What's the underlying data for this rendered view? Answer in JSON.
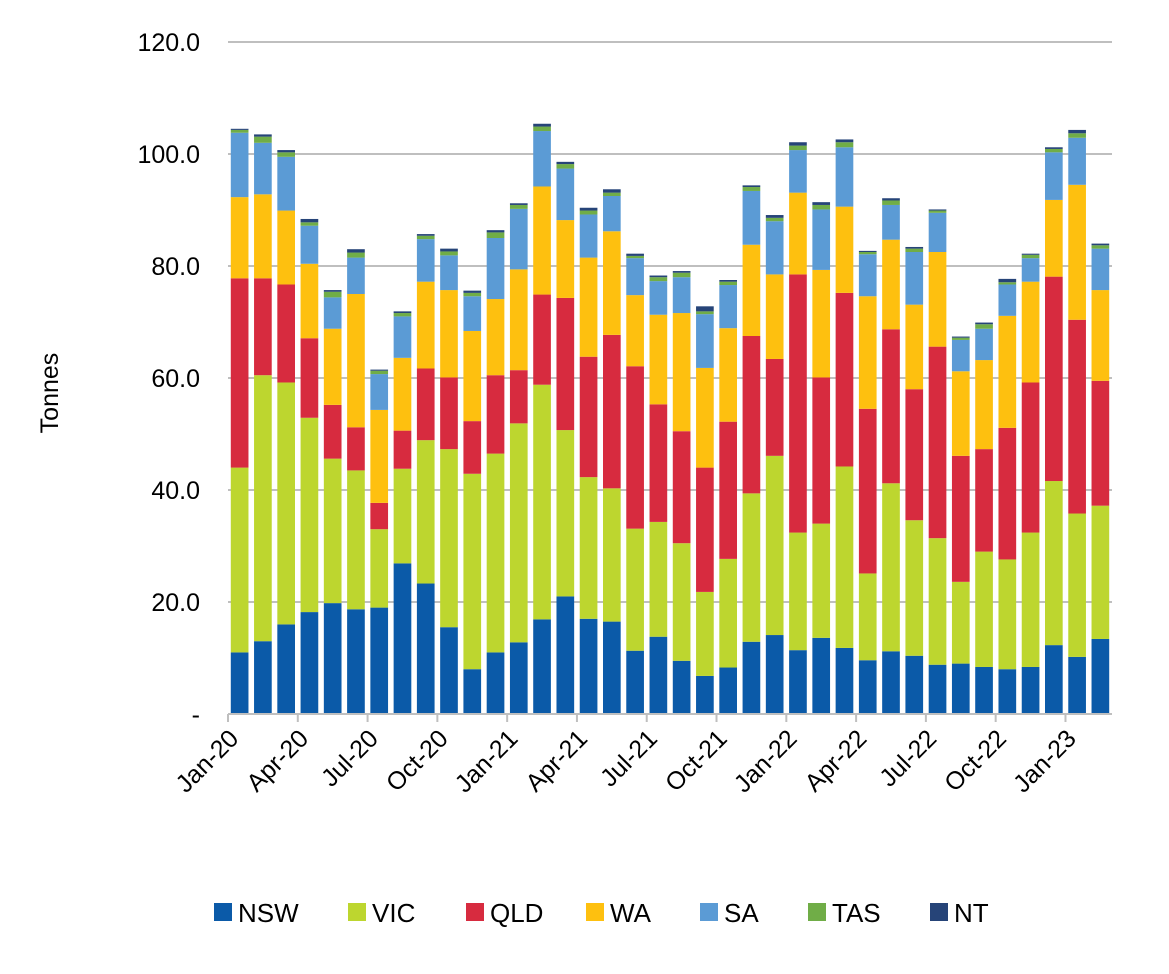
{
  "chart_data": {
    "type": "bar",
    "stacked": true,
    "title": "",
    "xlabel": "",
    "ylabel": "Tonnes",
    "ylim": [
      0,
      120
    ],
    "yticks": [
      "-",
      "20.0",
      "40.0",
      "60.0",
      "80.0",
      "100.0",
      "120.0"
    ],
    "ytick_values": [
      0,
      20,
      40,
      60,
      80,
      100,
      120
    ],
    "grid": true,
    "legend_position": "bottom",
    "categories": [
      "Jan-20",
      "Feb-20",
      "Mar-20",
      "Apr-20",
      "May-20",
      "Jun-20",
      "Jul-20",
      "Aug-20",
      "Sep-20",
      "Oct-20",
      "Nov-20",
      "Dec-20",
      "Jan-21",
      "Feb-21",
      "Mar-21",
      "Apr-21",
      "May-21",
      "Jun-21",
      "Jul-21",
      "Aug-21",
      "Sep-21",
      "Oct-21",
      "Nov-21",
      "Dec-21",
      "Jan-22",
      "Feb-22",
      "Mar-22",
      "Apr-22",
      "May-22",
      "Jun-22",
      "Jul-22",
      "Aug-22",
      "Sep-22",
      "Oct-22",
      "Nov-22",
      "Dec-22",
      "Jan-23",
      "Feb-23"
    ],
    "xtick_labels": [
      "Jan-20",
      "Apr-20",
      "Jul-20",
      "Oct-20",
      "Jan-21",
      "Apr-21",
      "Jul-21",
      "Oct-21",
      "Jan-22",
      "Apr-22",
      "Jul-22",
      "Oct-22",
      "Jan-23"
    ],
    "series": [
      {
        "name": "NSW",
        "color": "#0B5AA8",
        "values": [
          11.0,
          13.0,
          16.0,
          18.2,
          19.8,
          18.7,
          19.0,
          26.9,
          23.3,
          15.5,
          8.0,
          11.0,
          12.8,
          16.9,
          21.0,
          17.0,
          16.5,
          11.3,
          13.8,
          9.5,
          6.8,
          8.3,
          12.9,
          14.1,
          11.4,
          13.6,
          11.8,
          9.6,
          11.2,
          10.4,
          8.8,
          9.0,
          8.4,
          8.0,
          8.4,
          12.3,
          10.2,
          13.4
        ]
      },
      {
        "name": "VIC",
        "color": "#BDD62F",
        "values": [
          33.0,
          47.5,
          43.2,
          34.7,
          25.8,
          24.8,
          14.0,
          16.9,
          25.6,
          31.8,
          34.9,
          35.5,
          39.1,
          41.9,
          29.7,
          25.3,
          23.8,
          21.8,
          20.5,
          21.0,
          15.0,
          19.4,
          26.5,
          32.0,
          21.0,
          20.4,
          32.4,
          15.5,
          30.0,
          24.2,
          22.6,
          14.6,
          20.6,
          19.6,
          24.0,
          29.3,
          25.6,
          23.8
        ]
      },
      {
        "name": "QLD",
        "color": "#D72B3F",
        "values": [
          33.8,
          17.3,
          17.5,
          14.2,
          9.6,
          7.7,
          4.7,
          6.8,
          12.8,
          12.8,
          9.4,
          14.0,
          9.5,
          16.1,
          23.6,
          21.5,
          27.4,
          29.0,
          21.0,
          20.0,
          22.2,
          24.5,
          28.1,
          17.3,
          46.1,
          26.1,
          31.0,
          29.4,
          27.5,
          23.4,
          34.2,
          22.5,
          18.3,
          23.5,
          26.8,
          36.5,
          34.6,
          22.3
        ]
      },
      {
        "name": "WA",
        "color": "#FEC00F",
        "values": [
          14.5,
          15.0,
          13.2,
          13.3,
          13.6,
          23.8,
          16.6,
          13.0,
          15.5,
          15.6,
          16.1,
          13.6,
          18.0,
          19.3,
          13.9,
          17.7,
          18.5,
          12.7,
          16.0,
          21.1,
          17.8,
          16.7,
          16.3,
          15.1,
          14.6,
          19.2,
          15.4,
          20.1,
          16.0,
          15.1,
          16.9,
          15.1,
          15.9,
          20.0,
          18.0,
          13.7,
          24.1,
          16.2
        ]
      },
      {
        "name": "SA",
        "color": "#5B9BD5",
        "values": [
          11.5,
          9.2,
          9.6,
          6.8,
          5.6,
          6.5,
          6.4,
          7.4,
          7.6,
          6.2,
          6.2,
          10.9,
          10.8,
          9.9,
          9.2,
          7.7,
          6.3,
          6.6,
          6.0,
          6.4,
          9.6,
          7.7,
          9.6,
          9.5,
          7.6,
          10.8,
          10.6,
          7.5,
          6.2,
          9.4,
          7.0,
          5.6,
          5.6,
          5.6,
          4.2,
          8.5,
          8.4,
          7.4
        ]
      },
      {
        "name": "TAS",
        "color": "#70AD47",
        "values": [
          0.5,
          1.1,
          0.8,
          0.6,
          1.0,
          0.9,
          0.6,
          0.6,
          0.6,
          0.7,
          0.6,
          1.0,
          0.7,
          0.8,
          0.8,
          0.7,
          0.6,
          0.4,
          0.7,
          0.8,
          0.5,
          0.6,
          0.7,
          0.6,
          0.8,
          0.8,
          0.9,
          0.4,
          0.8,
          0.6,
          0.4,
          0.4,
          0.8,
          0.4,
          0.6,
          0.6,
          0.8,
          0.6
        ]
      },
      {
        "name": "NT",
        "color": "#264478",
        "values": [
          0.2,
          0.4,
          0.4,
          0.6,
          0.3,
          0.6,
          0.2,
          0.3,
          0.3,
          0.5,
          0.4,
          0.4,
          0.3,
          0.5,
          0.4,
          0.5,
          0.6,
          0.4,
          0.3,
          0.3,
          0.9,
          0.3,
          0.3,
          0.5,
          0.6,
          0.5,
          0.5,
          0.2,
          0.4,
          0.3,
          0.2,
          0.2,
          0.3,
          0.6,
          0.2,
          0.3,
          0.6,
          0.3
        ]
      }
    ]
  }
}
